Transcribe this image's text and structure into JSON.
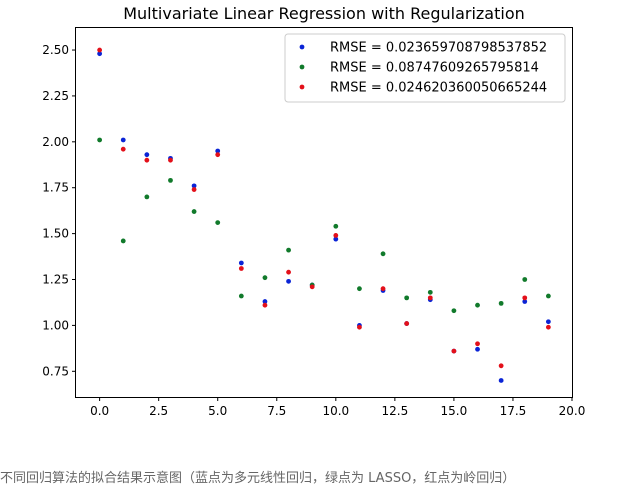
{
  "chart_data": {
    "type": "scatter",
    "title": "Multivariate Linear Regression with Regularization",
    "xlabel": "",
    "ylabel": "",
    "xlim": [
      -1,
      20
    ],
    "ylim": [
      0.61,
      2.62
    ],
    "xticks": [
      "0.0",
      "2.5",
      "5.0",
      "7.5",
      "10.0",
      "12.5",
      "15.0",
      "17.5",
      "20.0"
    ],
    "yticks": [
      "0.75",
      "1.00",
      "1.25",
      "1.50",
      "1.75",
      "2.00",
      "2.25",
      "2.50"
    ],
    "grid": false,
    "legend_position": "top-right",
    "x": [
      0,
      1,
      2,
      3,
      4,
      5,
      6,
      7,
      8,
      9,
      10,
      11,
      12,
      13,
      14,
      15,
      16,
      17,
      18,
      19
    ],
    "series": [
      {
        "name": "RMSE = 0.023659708798537852",
        "color": "#0a24d6",
        "values": [
          2.48,
          2.01,
          1.93,
          1.91,
          1.76,
          1.95,
          1.34,
          1.13,
          1.24,
          1.22,
          1.47,
          1.0,
          1.19,
          1.01,
          1.14,
          0.86,
          0.87,
          0.7,
          1.13,
          1.02
        ]
      },
      {
        "name": "RMSE = 0.08747609265795814",
        "color": "#117a2b",
        "values": [
          2.01,
          1.46,
          1.7,
          1.79,
          1.62,
          1.56,
          1.16,
          1.26,
          1.41,
          1.22,
          1.54,
          1.2,
          1.39,
          1.15,
          1.18,
          1.08,
          1.11,
          1.12,
          1.25,
          1.16
        ]
      },
      {
        "name": "RMSE = 0.024620360050665244",
        "color": "#e3101a",
        "values": [
          2.5,
          1.96,
          1.9,
          1.9,
          1.74,
          1.93,
          1.31,
          1.11,
          1.29,
          1.21,
          1.49,
          0.99,
          1.2,
          1.01,
          1.15,
          0.86,
          0.9,
          0.78,
          1.15,
          0.99
        ]
      }
    ]
  },
  "caption": "不同回归算法的拟合结果示意图（蓝点为多元线性回归，绿点为 LASSO，红点为岭回归）"
}
